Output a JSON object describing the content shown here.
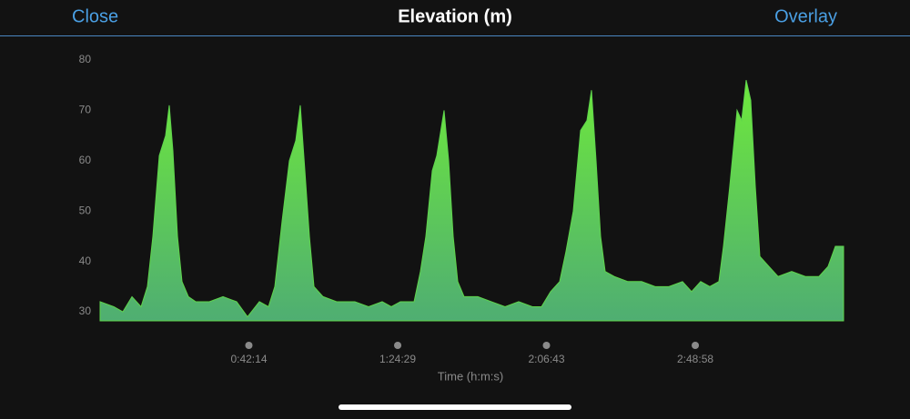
{
  "header": {
    "left": "Close",
    "title": "Elevation (m)",
    "right": "Overlay"
  },
  "chart_data": {
    "type": "area",
    "xlabel": "Time (h:m:s)",
    "color": "#5fd44c",
    "x": [
      0,
      233,
      388,
      543,
      698,
      806,
      899,
      1008,
      1116,
      1178,
      1240,
      1318,
      1395,
      1504,
      1628,
      1860,
      2093,
      2325,
      2511,
      2713,
      2868,
      2976,
      3100,
      3224,
      3333,
      3410,
      3488,
      3565,
      3643,
      3798,
      4030,
      4340,
      4573,
      4805,
      4960,
      5115,
      5348,
      5456,
      5549,
      5658,
      5735,
      5859,
      5937,
      6014,
      6092,
      6200,
      6433,
      6665,
      6898,
      7130,
      7363,
      7518,
      7673,
      7828,
      7936,
      8060,
      8184,
      8293,
      8370,
      8448,
      8525,
      8603,
      8758,
      8990,
      9223,
      9455,
      9688,
      9920,
      10075,
      10230,
      10385,
      10540,
      10618,
      10726,
      10850,
      10928,
      11005,
      11083,
      11160,
      11238,
      11393,
      11548,
      11780,
      12013,
      12245,
      12400,
      12524,
      12664
    ],
    "values": [
      32,
      31,
      30,
      33,
      31,
      35,
      45,
      61,
      65,
      71,
      62,
      45,
      36,
      33,
      32,
      32,
      33,
      32,
      29,
      32,
      31,
      35,
      48,
      60,
      64,
      71,
      58,
      45,
      35,
      33,
      32,
      32,
      31,
      32,
      31,
      32,
      32,
      38,
      45,
      58,
      61,
      70,
      60,
      45,
      36,
      33,
      33,
      32,
      31,
      32,
      31,
      31,
      34,
      36,
      42,
      50,
      66,
      68,
      74,
      60,
      45,
      38,
      37,
      36,
      36,
      35,
      35,
      36,
      34,
      36,
      35,
      36,
      43,
      55,
      70,
      68,
      76,
      72,
      55,
      41,
      39,
      37,
      38,
      37,
      37,
      39,
      43,
      43
    ],
    "xlim": [
      0,
      12664
    ],
    "ylim": [
      28.2,
      80
    ],
    "yticks": [
      30,
      40,
      50,
      60,
      70,
      80
    ],
    "xticks": [
      {
        "value": 2534,
        "label": "0:42:14"
      },
      {
        "value": 5069,
        "label": "1:24:29"
      },
      {
        "value": 7603,
        "label": "2:06:43"
      },
      {
        "value": 10138,
        "label": "2:48:58"
      }
    ]
  }
}
